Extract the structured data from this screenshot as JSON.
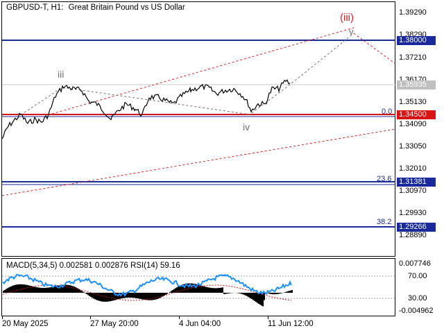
{
  "header": {
    "symbol": "GBPUSD-T,",
    "timeframe": "H1:",
    "description": "Great Britain Pound vs US Dollar"
  },
  "price_axis": [
    "1.39290",
    "1.38290",
    "1.37210",
    "1.36170",
    "1.35130",
    "1.34090",
    "1.33050",
    "1.32010",
    "1.30970",
    "1.29930",
    "1.28890"
  ],
  "level_tags": {
    "resistance": "1.38000",
    "current": "1.35935",
    "support": "1.34500",
    "fib_236": "1.31381",
    "fib_382": "1.29266"
  },
  "fib_labels": {
    "zero": "0.0",
    "f236": "23.6",
    "f382": "38.2"
  },
  "wave_labels": {
    "iii_red": "(iii)",
    "v": "v",
    "iii": "iii",
    "iv": "iv"
  },
  "indicator": {
    "header": "MACD(5,34,5) 0.002581 0.002876 RSI(14) 59.16",
    "axis": [
      "0.007746",
      "70.00",
      "30.00",
      "-0.004962"
    ]
  },
  "time_axis": [
    "20 May 2025",
    "27 May 20:00",
    "4 Jun 04:00",
    "11 Jun 12:00"
  ],
  "colors": {
    "blue_line": "#1a2a9c",
    "red_line": "#d91414",
    "dashed_red": "#e02020",
    "price": "#000000",
    "rsi": "#1e90ff",
    "wave_red": "#e02020"
  }
}
